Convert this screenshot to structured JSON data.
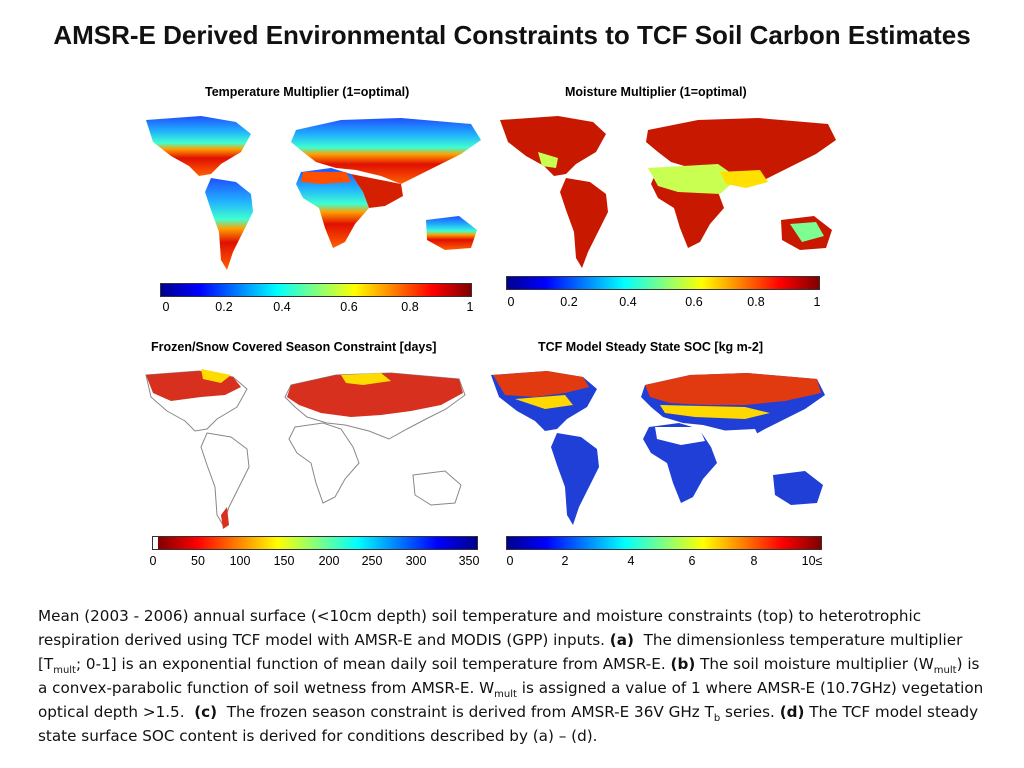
{
  "title": "AMSR-E Derived Environmental Constraints to TCF Soil Carbon Estimates",
  "panels": [
    {
      "title": "Temperature Multiplier (1=optimal)",
      "colormap": "jet",
      "ticks": [
        "0",
        "0.2",
        "0.4",
        "0.6",
        "0.8",
        "1"
      ]
    },
    {
      "title": "Moisture Multiplier (1=optimal)",
      "colormap": "jet",
      "ticks": [
        "0",
        "0.2",
        "0.4",
        "0.6",
        "0.8",
        "1"
      ]
    },
    {
      "title": "Frozen/Snow Covered Season Constraint [days]",
      "colormap": "jet-reversed",
      "ticks": [
        "0",
        "50",
        "100",
        "150",
        "200",
        "250",
        "300",
        "350"
      ]
    },
    {
      "title": "TCF Model Steady State SOC [kg m-2]",
      "colormap": "jet",
      "ticks": [
        "0",
        "2",
        "4",
        "6",
        "8",
        "10≤"
      ]
    }
  ],
  "caption": {
    "p1": "Mean (2003 - 2006) annual surface (<10cm depth) soil temperature and moisture constraints (top) to heterotrophic respiration derived using TCF model with AMSR-E and MODIS (GPP) inputs.",
    "a_label": "(a)",
    "p2": "The dimensionless temperature multiplier [T",
    "sub_mult1": "mult",
    "p3": "; 0-1] is an exponential function of mean daily soil temperature from AMSR-E.",
    "b_label": "(b)",
    "p4": "The soil moisture multiplier (W",
    "sub_mult2": "mult",
    "p5": ") is a convex-parabolic function of soil wetness from AMSR-E.  W",
    "sub_mult3": "mult",
    "p6": "is assigned a value of 1 where AMSR-E (10.7GHz) vegetation optical depth >1.5.",
    "c_label": "(c)",
    "p7": "The frozen season constraint is derived from AMSR-E 36V GHz T",
    "sub_b": "b",
    "p8": "series.",
    "d_label": "(d)",
    "p9": "The TCF model steady state surface SOC content is derived for conditions described by (a) – (d)."
  },
  "colors": {
    "jet": [
      "#00008f",
      "#0000ff",
      "#0080ff",
      "#00ffff",
      "#80ff80",
      "#ffff00",
      "#ff8000",
      "#ff0000",
      "#800000"
    ],
    "frozen_red": "#d7301f",
    "soc_blue": "#1f3fd6"
  }
}
